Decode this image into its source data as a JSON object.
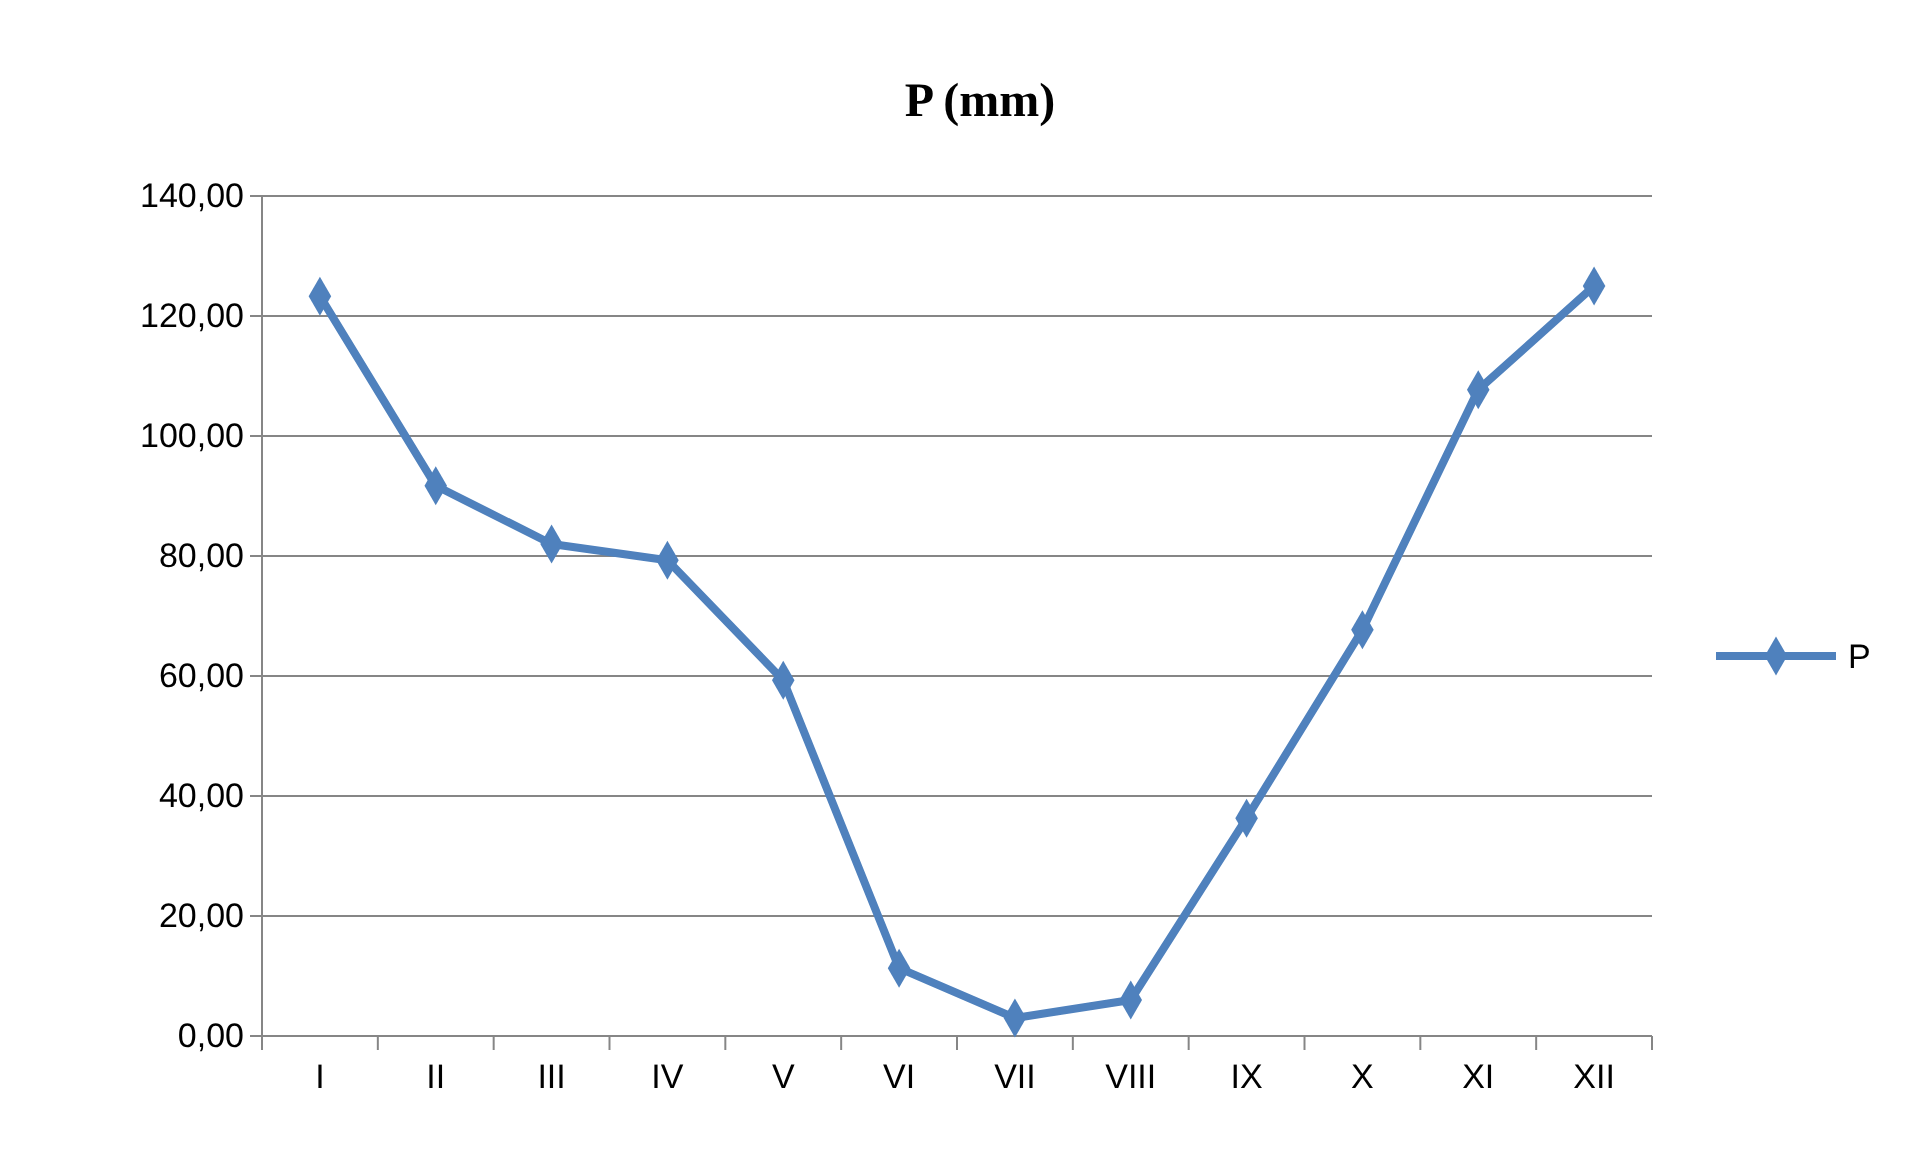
{
  "chart_data": {
    "type": "line",
    "title": "P (mm)",
    "categories": [
      "I",
      "II",
      "III",
      "IV",
      "V",
      "VI",
      "VII",
      "VIII",
      "IX",
      "X",
      "XI",
      "XII"
    ],
    "series": [
      {
        "name": "P",
        "color": "#4f81bd",
        "values": [
          123.3,
          91.7,
          82,
          79.3,
          59.3,
          11.3,
          3,
          6,
          36.3,
          67.7,
          107.7,
          125
        ]
      }
    ],
    "ylim": [
      0,
      140
    ],
    "yticks": [
      {
        "value": 0,
        "label": "0,00"
      },
      {
        "value": 20,
        "label": "20,00"
      },
      {
        "value": 40,
        "label": "40,00"
      },
      {
        "value": 60,
        "label": "60,00"
      },
      {
        "value": 80,
        "label": "80,00"
      },
      {
        "value": 100,
        "label": "100,00"
      },
      {
        "value": 120,
        "label": "120,00"
      },
      {
        "value": 140,
        "label": "140,00"
      }
    ],
    "grid": "y",
    "legend": "right",
    "marker": "diamond",
    "line_style": "solid"
  }
}
